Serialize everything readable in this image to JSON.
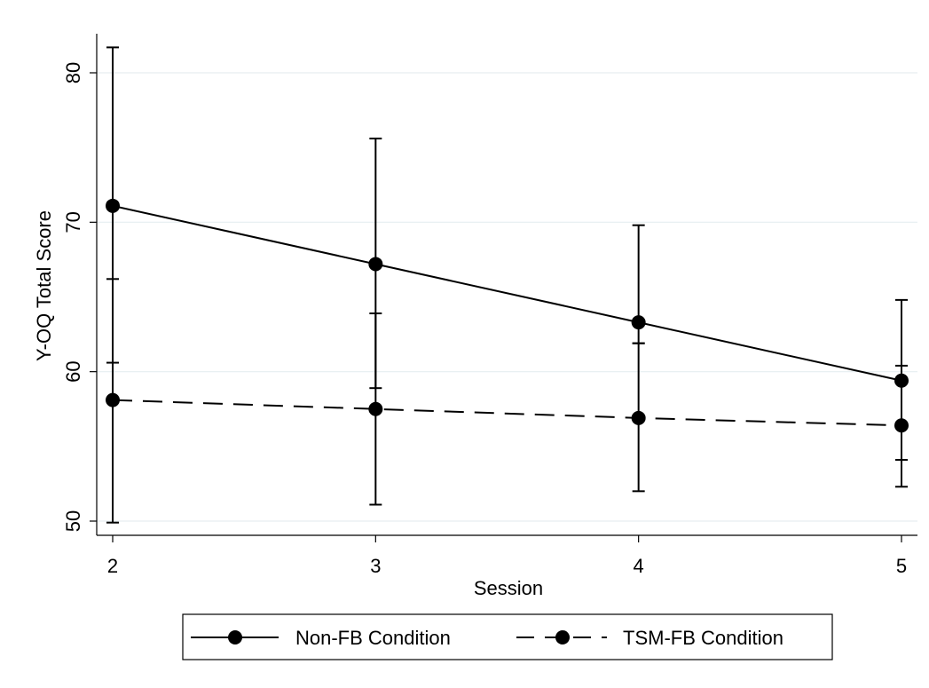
{
  "chart_data": {
    "type": "line",
    "xlabel": "Session",
    "ylabel": "Y-OQ Total Score",
    "x": [
      2,
      3,
      4,
      5
    ],
    "xticks": [
      "2",
      "3",
      "4",
      "5"
    ],
    "ylim": [
      49,
      84.5
    ],
    "yticks": [
      "50",
      "60",
      "70",
      "80"
    ],
    "grid": true,
    "legend_position": "bottom",
    "series": [
      {
        "name": "Non-FB Condition",
        "values": [
          71.1,
          67.2,
          63.3,
          59.4
        ],
        "ci_low": [
          60.6,
          58.9,
          61.9,
          54.1
        ],
        "ci_high": [
          81.7,
          75.6,
          69.8,
          64.8
        ],
        "line_style": "solid",
        "color": "#000000"
      },
      {
        "name": "TSM-FB Condition",
        "values": [
          58.1,
          57.5,
          56.9,
          56.4
        ],
        "ci_low": [
          49.9,
          51.1,
          52.0,
          52.3
        ],
        "ci_high": [
          66.2,
          63.9,
          61.9,
          60.4
        ],
        "line_style": "dashed",
        "color": "#000000"
      }
    ]
  }
}
